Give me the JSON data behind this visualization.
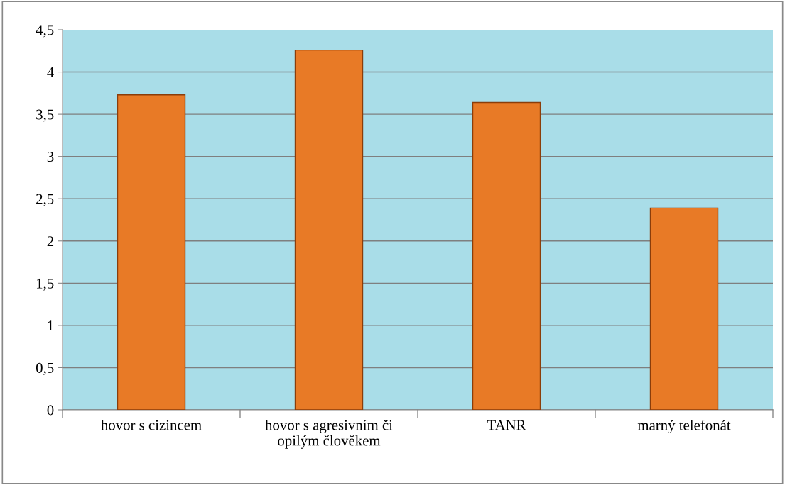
{
  "chart_data": {
    "type": "bar",
    "categories": [
      "hovor s cizincem",
      "hovor s agresivním či\nopilým člověkem",
      "TANR",
      "marný telefonát"
    ],
    "values": [
      3.73,
      4.26,
      3.64,
      2.39
    ],
    "color": "#e87a26",
    "ylim": [
      0,
      4.5
    ],
    "yticks": [
      0,
      {
        "value": 0.5,
        "label": "0,5"
      },
      1,
      {
        "value": 1.5,
        "label": "1,5"
      },
      2,
      {
        "value": 2.5,
        "label": "2,5"
      },
      3,
      {
        "value": 3.5,
        "label": "3,5"
      },
      4,
      {
        "value": 4.5,
        "label": "4,5"
      }
    ],
    "grid": "y",
    "legend": false
  }
}
